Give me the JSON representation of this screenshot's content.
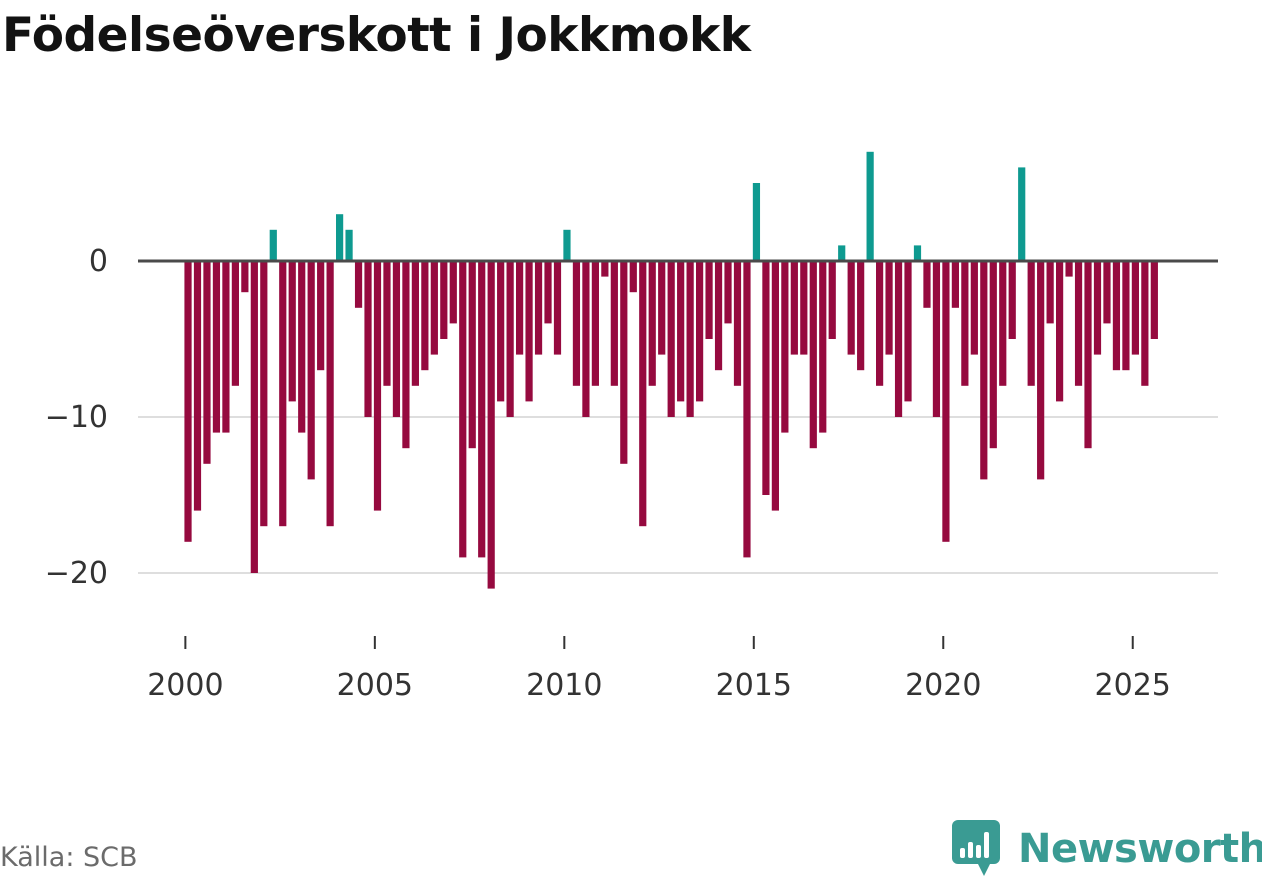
{
  "title": "Födelseöverskott i Jokkmokk",
  "source": "Källa: SCB",
  "brand": {
    "name": "Newsworthy",
    "icon": "newsworthy-logo-icon",
    "color": "#3a9b93"
  },
  "colors": {
    "positive": "#0e9a90",
    "negative": "#960a3f",
    "zero_line": "#4a4a4a",
    "grid": "#dedede",
    "axis_text": "#333333"
  },
  "chart_data": {
    "type": "bar",
    "title": "Födelseöverskott i Jokkmokk",
    "xlabel": "",
    "ylabel": "",
    "frequency": "quarterly",
    "start": 2000.0,
    "step": 0.25,
    "x_ticks": [
      "2000",
      "2005",
      "2010",
      "2015",
      "2020",
      "2025"
    ],
    "x_tick_values": [
      2000,
      2005,
      2010,
      2015,
      2020,
      2025
    ],
    "y_ticks": [
      "0",
      "−10",
      "−20"
    ],
    "y_tick_values": [
      0,
      -10,
      -20
    ],
    "xlim": [
      1998.75,
      2027.25
    ],
    "ylim": [
      -23,
      8
    ],
    "gridlines": "horizontal",
    "values": [
      -18,
      -16,
      -13,
      -11,
      -11,
      -8,
      -2,
      -20,
      -17,
      2,
      -17,
      -9,
      -11,
      -14,
      -7,
      -17,
      3,
      2,
      -3,
      -10,
      -16,
      -8,
      -10,
      -12,
      -8,
      -7,
      -6,
      -5,
      -4,
      -19,
      -12,
      -19,
      -21,
      -9,
      -10,
      -6,
      -9,
      -6,
      -4,
      -6,
      2,
      -8,
      -10,
      -8,
      -1,
      -8,
      -13,
      -2,
      -17,
      -8,
      -6,
      -10,
      -9,
      -10,
      -9,
      -5,
      -7,
      -4,
      -8,
      -19,
      5,
      -15,
      -16,
      -11,
      -6,
      -6,
      -12,
      -11,
      -5,
      1,
      -6,
      -7,
      7,
      -8,
      -6,
      -10,
      -9,
      1,
      -3,
      -10,
      -18,
      -3,
      -8,
      -6,
      -14,
      -12,
      -8,
      -5,
      6,
      -8,
      -14,
      -4,
      -9,
      -1,
      -8,
      -12,
      -6,
      -4,
      -7,
      -7,
      -6,
      -8,
      -5
    ]
  }
}
